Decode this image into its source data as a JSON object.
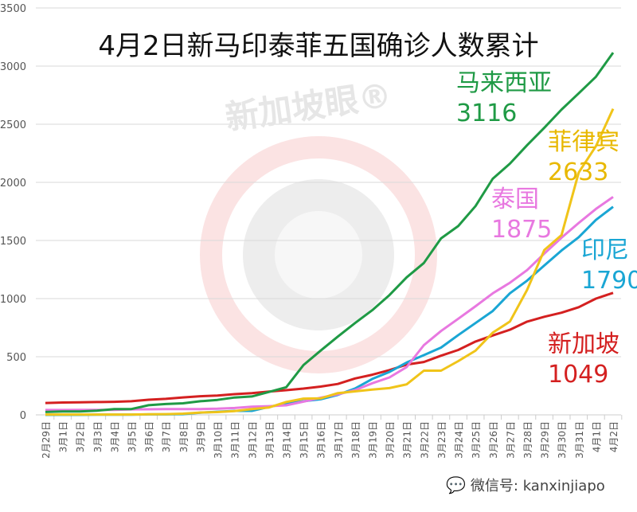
{
  "chart_data": {
    "type": "line",
    "title": "4月2日新马印泰菲五国确诊人数累计",
    "xlabel": "",
    "ylabel": "",
    "ylim": [
      0,
      3500
    ],
    "yticks": [
      0,
      500,
      1000,
      1500,
      2000,
      2500,
      3000,
      3500
    ],
    "grid": true,
    "categories": [
      "2月29日",
      "3月1日",
      "3月2日",
      "3月3日",
      "3月4日",
      "3月5日",
      "3月6日",
      "3月7日",
      "3月8日",
      "3月9日",
      "3月10日",
      "3月11日",
      "3月12日",
      "3月13日",
      "3月14日",
      "3月15日",
      "3月16日",
      "3月17日",
      "3月18日",
      "3月19日",
      "3月20日",
      "3月21日",
      "3月22日",
      "3月23日",
      "3月24日",
      "3月25日",
      "3月26日",
      "3月27日",
      "3月28日",
      "3月29日",
      "3月30日",
      "3月31日",
      "4月1日",
      "4月2日"
    ],
    "series": [
      {
        "name": "马来西亚",
        "final": "3116",
        "color": "#1f9a45",
        "values": [
          25,
          29,
          29,
          36,
          50,
          50,
          83,
          93,
          99,
          117,
          129,
          149,
          158,
          197,
          238,
          428,
          553,
          673,
          790,
          900,
          1030,
          1183,
          1306,
          1518,
          1624,
          1796,
          2031,
          2161,
          2320,
          2470,
          2626,
          2766,
          2908,
          3116
        ]
      },
      {
        "name": "菲律宾",
        "final": "2633",
        "color": "#f0c419",
        "values": [
          3,
          3,
          3,
          3,
          3,
          3,
          5,
          6,
          10,
          20,
          24,
          33,
          49,
          64,
          111,
          140,
          142,
          187,
          202,
          217,
          230,
          262,
          380,
          380,
          462,
          552,
          707,
          803,
          1075,
          1418,
          1546,
          2084,
          2311,
          2633
        ]
      },
      {
        "name": "泰国",
        "final": "1875",
        "color": "#e878e0",
        "values": [
          42,
          42,
          43,
          43,
          43,
          47,
          48,
          50,
          50,
          50,
          53,
          59,
          70,
          75,
          82,
          114,
          147,
          177,
          212,
          272,
          322,
          411,
          599,
          721,
          827,
          934,
          1045,
          1136,
          1245,
          1388,
          1524,
          1651,
          1771,
          1875
        ]
      },
      {
        "name": "印尼",
        "final": "1790",
        "color": "#1aa6d4",
        "values": [
          0,
          0,
          0,
          2,
          2,
          2,
          4,
          4,
          6,
          19,
          27,
          34,
          34,
          69,
          96,
          117,
          134,
          172,
          227,
          309,
          369,
          450,
          514,
          579,
          686,
          790,
          893,
          1046,
          1155,
          1285,
          1414,
          1528,
          1677,
          1790
        ]
      },
      {
        "name": "新加坡",
        "final": "1049",
        "color": "#d42020",
        "values": [
          102,
          106,
          108,
          110,
          112,
          117,
          130,
          138,
          150,
          160,
          166,
          178,
          187,
          200,
          212,
          226,
          243,
          266,
          313,
          345,
          385,
          432,
          455,
          509,
          558,
          631,
          683,
          732,
          802,
          844,
          879,
          926,
          1000,
          1049
        ]
      }
    ]
  },
  "watermark": "新加坡眼®",
  "footer": {
    "text": "微信号: kanxinjiapo",
    "icon": "wechat-icon"
  }
}
